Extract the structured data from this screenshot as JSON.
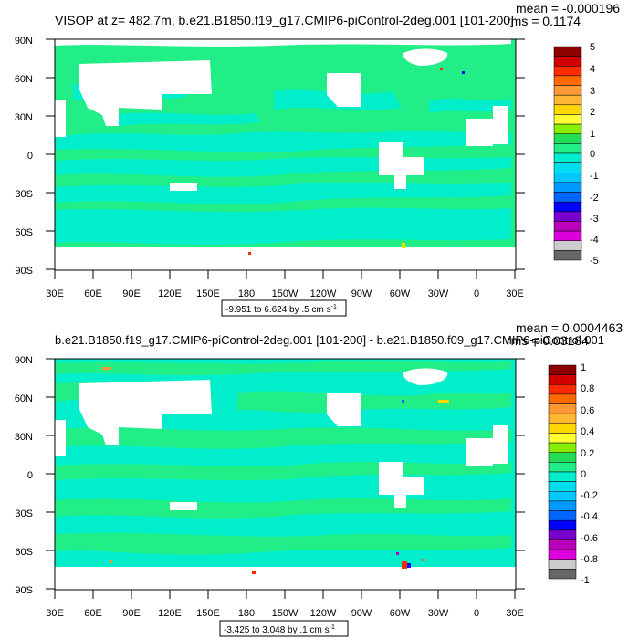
{
  "panels": [
    {
      "title": "VISOP at z= 482.7m, b.e21.B1850.f19_g17.CMIP6-piControl-2deg.001 [101-200]",
      "stats": [
        "mean = -0.000196",
        "rms = 0.1174"
      ],
      "range_label": "-9.951 to 6.624 by .5 cm s",
      "range_exp": "-1",
      "lat_labels": [
        "90N",
        "60N",
        "30N",
        "0",
        "30S",
        "60S",
        "90S"
      ],
      "lon_labels": [
        "30E",
        "60E",
        "90E",
        "120E",
        "150E",
        "180",
        "150W",
        "120W",
        "90W",
        "60W",
        "30W",
        "0",
        "30E"
      ],
      "legend": {
        "labels": [
          "5",
          "4",
          "3",
          "2",
          "1",
          "0",
          "-1",
          "-2",
          "-3",
          "-4",
          "-5"
        ],
        "colors": [
          "#8c0000",
          "#d00000",
          "#ff2a00",
          "#ff6a00",
          "#ff9933",
          "#ffb733",
          "#ffd700",
          "#ffff33",
          "#88ee00",
          "#22dd55",
          "#22ee88",
          "#00eecc",
          "#00ddee",
          "#00c8ff",
          "#0099ff",
          "#0066ff",
          "#0000ff",
          "#7700cc",
          "#bb00bb",
          "#dd00dd",
          "#cccccc",
          "#666666"
        ]
      }
    },
    {
      "title": "b.e21.B1850.f19_g17.CMIP6-piControl-2deg.001 [101-200] - b.e21.B1850.f09_g17.CMIP6-piControl.001",
      "stats": [
        "mean = 0.0004463",
        "rms = 0.03184"
      ],
      "range_label": "-3.425 to 3.048 by .1 cm s",
      "range_exp": "-1",
      "lat_labels": [
        "90N",
        "60N",
        "30N",
        "0",
        "30S",
        "60S",
        "90S"
      ],
      "lon_labels": [
        "30E",
        "60E",
        "90E",
        "120E",
        "150E",
        "180",
        "150W",
        "120W",
        "90W",
        "60W",
        "30W",
        "0",
        "30E"
      ],
      "legend": {
        "labels": [
          "1",
          "0.8",
          "0.6",
          "0.4",
          "0.2",
          "0",
          "-0.2",
          "-0.4",
          "-0.6",
          "-0.8",
          "-1"
        ],
        "colors": [
          "#8c0000",
          "#d00000",
          "#ff2a00",
          "#ff6a00",
          "#ff9933",
          "#ffb733",
          "#ffd700",
          "#ffff33",
          "#88ee00",
          "#22dd55",
          "#22ee88",
          "#00eecc",
          "#00ddee",
          "#00c8ff",
          "#0099ff",
          "#0066ff",
          "#0000ff",
          "#7700cc",
          "#bb00bb",
          "#dd00dd",
          "#cccccc",
          "#666666"
        ]
      }
    }
  ],
  "map_colors": {
    "ocean_main": "#22ee88",
    "ocean_band": "#00eecc",
    "land": "#ffffff"
  }
}
